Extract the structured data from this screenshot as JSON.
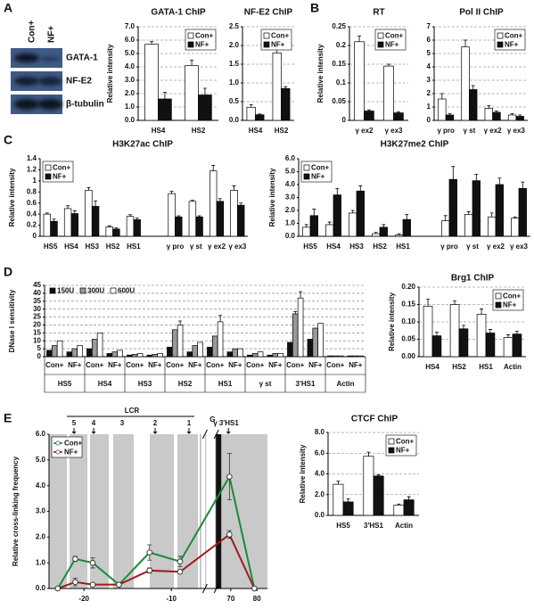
{
  "panels": [
    "A",
    "B",
    "C",
    "D",
    "E"
  ],
  "blot": {
    "lanes": [
      "Con+",
      "NF+"
    ],
    "proteins": [
      "GATA-1",
      "NF-E2",
      "β-tubulin"
    ]
  },
  "chart_data": [
    {
      "type": "bar",
      "title": "GATA-1 ChIP",
      "y_label": "Relative intensity",
      "categories": [
        "HS4",
        "HS2"
      ],
      "series": [
        {
          "name": "Con+",
          "color": "#ffffff",
          "values": [
            5.7,
            4.1
          ],
          "errors": [
            0.2,
            0.4
          ]
        },
        {
          "name": "NF+",
          "color": "#111111",
          "values": [
            1.6,
            1.9
          ],
          "errors": [
            0.5,
            0.5
          ]
        }
      ],
      "ylim": [
        0,
        7
      ],
      "yticks": [
        {
          "value": 0,
          "label": "0.0"
        },
        {
          "value": 1,
          "label": "1.0"
        },
        {
          "value": 2,
          "label": "2.0"
        },
        {
          "value": 3,
          "label": "3.0"
        },
        {
          "value": 4,
          "label": "4.0"
        },
        {
          "value": 5,
          "label": "5.0"
        },
        {
          "value": 6,
          "label": "6.0"
        },
        {
          "value": 7,
          "label": "7.0"
        }
      ],
      "grid": true,
      "legend": "upper right"
    },
    {
      "type": "bar",
      "title": "NF-E2 ChIP",
      "categories": [
        "HS4",
        "HS2"
      ],
      "series": [
        {
          "name": "Con+",
          "color": "#ffffff",
          "values": [
            0.35,
            1.8
          ],
          "errors": [
            0.07,
            0.1
          ]
        },
        {
          "name": "NF+",
          "color": "#111111",
          "values": [
            0.15,
            0.85
          ],
          "errors": [
            0.02,
            0.05
          ]
        }
      ],
      "ylim": [
        0,
        2.5
      ],
      "yticks": [
        {
          "value": 0,
          "label": "0.0"
        },
        0.5,
        {
          "value": 1,
          "label": "1.0"
        },
        1.5,
        {
          "value": 2,
          "label": "2.0"
        },
        2.5
      ],
      "grid": true,
      "legend": "upper right"
    },
    {
      "type": "bar",
      "title": "RT",
      "y_label": "Relative intensity",
      "categories": [
        "γ ex2",
        "γ ex3"
      ],
      "series": [
        {
          "name": "Con+",
          "color": "#ffffff",
          "values": [
            0.21,
            0.145
          ],
          "errors": [
            0.015,
            0.005
          ]
        },
        {
          "name": "NF+",
          "color": "#111111",
          "values": [
            0.025,
            0.02
          ],
          "errors": [
            0.003,
            0.003
          ]
        }
      ],
      "ylim": [
        0,
        0.25
      ],
      "yticks": [
        0,
        0.05,
        0.1,
        0.15,
        0.2,
        0.25
      ],
      "grid": true,
      "legend": "upper right"
    },
    {
      "type": "bar",
      "title": "Pol II ChIP",
      "categories": [
        "γ pro",
        "γ st",
        "γ ex2",
        "γ ex3"
      ],
      "series": [
        {
          "name": "Con+",
          "color": "#ffffff",
          "values": [
            1.6,
            5.5,
            0.9,
            0.4
          ],
          "errors": [
            0.4,
            0.5,
            0.2,
            0.1
          ]
        },
        {
          "name": "NF+",
          "color": "#111111",
          "values": [
            0.4,
            2.3,
            0.6,
            0.3
          ],
          "errors": [
            0.1,
            0.3,
            0.1,
            0.1
          ]
        }
      ],
      "ylim": [
        0,
        7
      ],
      "yticks": [
        0,
        1,
        2,
        3,
        4,
        5,
        6,
        7
      ],
      "grid": true,
      "legend": "upper right"
    },
    {
      "type": "bar",
      "title": "H3K27ac ChIP",
      "y_label": "Relative intensity",
      "categories": [
        "HS5",
        "HS4",
        "HS3",
        "HS2",
        "HS1",
        null,
        "γ pro",
        "γ st",
        "γ ex2",
        "γ ex3"
      ],
      "series": [
        {
          "name": "Con+",
          "color": "#ffffff",
          "values": [
            0.4,
            0.5,
            0.83,
            0.17,
            0.36,
            null,
            0.77,
            0.63,
            1.18,
            0.83
          ],
          "errors": [
            0.02,
            0.05,
            0.05,
            0.02,
            0.03,
            null,
            0.04,
            0.02,
            0.1,
            0.08
          ]
        },
        {
          "name": "NF+",
          "color": "#111111",
          "values": [
            0.27,
            0.41,
            0.54,
            0.13,
            0.3,
            null,
            0.35,
            0.35,
            0.63,
            0.56
          ],
          "errors": [
            0.04,
            0.05,
            0.1,
            0.02,
            0.03,
            null,
            0.02,
            0.02,
            0.05,
            0.04
          ]
        }
      ],
      "ylim": [
        0,
        1.4
      ],
      "yticks": [
        0,
        0.2,
        0.4,
        0.6,
        0.8,
        1,
        1.2,
        1.4
      ],
      "grid": false,
      "legend": "upper left"
    },
    {
      "type": "bar",
      "title": "H3K27me2 ChIP",
      "y_label": "Relative intensity",
      "categories": [
        "HS5",
        "HS4",
        "HS3",
        "HS2",
        "HS1",
        null,
        "γ pro",
        "γ st",
        "γ ex2",
        "γ ex3"
      ],
      "series": [
        {
          "name": "Con+",
          "color": "#ffffff",
          "values": [
            0.7,
            0.9,
            1.8,
            0.2,
            0.1,
            null,
            1.2,
            1.7,
            1.5,
            1.4
          ],
          "errors": [
            0.2,
            0.2,
            0.2,
            0.1,
            0.1,
            null,
            0.4,
            0.2,
            0.3,
            0.1
          ]
        },
        {
          "name": "NF+",
          "color": "#111111",
          "values": [
            1.6,
            3.2,
            3.5,
            0.7,
            1.3,
            null,
            4.4,
            4.3,
            4.0,
            3.7
          ],
          "errors": [
            0.5,
            0.5,
            0.4,
            0.2,
            0.4,
            null,
            1.0,
            0.5,
            0.5,
            0.5
          ]
        }
      ],
      "ylim": [
        0,
        6
      ],
      "yticks": [
        {
          "value": 0,
          "label": "0.0"
        },
        {
          "value": 1,
          "label": "1.0"
        },
        {
          "value": 2,
          "label": "2.0"
        },
        {
          "value": 3,
          "label": "3.0"
        },
        {
          "value": 4,
          "label": "4.0"
        },
        {
          "value": 5,
          "label": "5.0"
        },
        {
          "value": 6,
          "label": "6.0"
        }
      ],
      "grid": false,
      "legend": "upper left"
    },
    {
      "type": "bar",
      "y_label": "DNase I sensitivity",
      "categories": [
        "Con+",
        "NF+",
        "Con+",
        "NF+",
        "Con+",
        "NF+",
        "Con+",
        "NF+",
        "Con+",
        "NF+",
        "Con+",
        "NF+",
        "Con+",
        "NF+",
        "Con+",
        "NF+"
      ],
      "groups": [
        "HS5",
        "HS4",
        "HS3",
        "HS2",
        "HS1",
        "γ st",
        "3'HS1",
        "Actin"
      ],
      "series": [
        {
          "name": "150U",
          "color": "#111111",
          "values": [
            4,
            3,
            5,
            2,
            1,
            1,
            6,
            3,
            6,
            3,
            1,
            1,
            9,
            11,
            0.5,
            0.5
          ]
        },
        {
          "name": "300U",
          "color": "#999999",
          "values": [
            7,
            5,
            11,
            3,
            1.5,
            1.5,
            17,
            7,
            13,
            5,
            2,
            2,
            27,
            18,
            0.5,
            0.5
          ],
          "errors": [
            null,
            null,
            null,
            null,
            null,
            null,
            null,
            null,
            null,
            null,
            null,
            null,
            1.5,
            null,
            null,
            null
          ]
        },
        {
          "name": "600U",
          "color": "#ffffff",
          "values": [
            10,
            7,
            15,
            4,
            2,
            2,
            20,
            9,
            22,
            5,
            3,
            2,
            37,
            21,
            0.5,
            0.5
          ],
          "errors": [
            null,
            null,
            null,
            null,
            null,
            null,
            2.5,
            null,
            4,
            null,
            null,
            null,
            4,
            null,
            null,
            null
          ]
        }
      ],
      "ylim": [
        0,
        45
      ],
      "yticks": [
        0,
        5,
        10,
        15,
        20,
        25,
        30,
        35,
        40,
        45
      ],
      "grid": true,
      "legend": "upper left"
    },
    {
      "type": "bar",
      "title": "Brg1 ChIP",
      "y_label": "Relative intensity",
      "categories": [
        "HS4",
        "HS2",
        "HS1",
        "Actin"
      ],
      "series": [
        {
          "name": "Con+",
          "color": "#ffffff",
          "values": [
            0.145,
            0.15,
            0.122,
            0.055
          ],
          "errors": [
            0.02,
            0.01,
            0.015,
            0.008
          ]
        },
        {
          "name": "NF+",
          "color": "#111111",
          "values": [
            0.06,
            0.08,
            0.068,
            0.065
          ],
          "errors": [
            0.01,
            0.01,
            0.01,
            0.008
          ]
        }
      ],
      "ylim": [
        0,
        0.2
      ],
      "yticks": [
        {
          "value": 0,
          "label": "0.00"
        },
        0.05,
        {
          "value": 0.1,
          "label": "0.10"
        },
        0.15,
        {
          "value": 0.2,
          "label": "0.20"
        }
      ],
      "grid": true,
      "legend": "upper right"
    },
    {
      "type": "line",
      "y_label": "Relative cross-linking frequency",
      "x": [
        -23,
        -21,
        -19,
        -16,
        -12.5,
        -9,
        69.5,
        79
      ],
      "series": [
        {
          "name": "Con+",
          "color": "#1a8a3a",
          "values": [
            0,
            1.15,
            1.0,
            0.15,
            1.4,
            1.05,
            4.35,
            0
          ],
          "errors": [
            null,
            0.1,
            0.2,
            null,
            0.3,
            0.2,
            0.9,
            null
          ]
        },
        {
          "name": "NF+",
          "color": "#a01c1c",
          "values": [
            0,
            0.25,
            0.15,
            0.15,
            0.7,
            0.65,
            2.1,
            0
          ],
          "errors": [
            null,
            0.15,
            null,
            null,
            0.1,
            null,
            0.15,
            null
          ]
        }
      ],
      "xlim": [
        -24,
        84
      ],
      "xbreak": [
        -6,
        64
      ],
      "xticks": [
        -20,
        -10,
        70,
        80
      ],
      "ylim": [
        0,
        6
      ],
      "yticks": [
        {
          "value": 0,
          "label": "0.0"
        },
        {
          "value": 1,
          "label": "1.0"
        },
        {
          "value": 2,
          "label": "2.0"
        },
        {
          "value": 3,
          "label": "3.0"
        },
        {
          "value": 4,
          "label": "4.0"
        },
        {
          "value": 5,
          "label": "5.0"
        },
        {
          "value": 6,
          "label": "6.0"
        }
      ],
      "annotations": {
        "region": "LCR",
        "hs": [
          "5",
          "4",
          "3",
          "2",
          "1"
        ],
        "gene_sup": "G",
        "gene": "γ 3'HS1"
      },
      "legend": "upper left"
    },
    {
      "type": "bar",
      "title": "CTCF ChIP",
      "y_label": "Relative intensity",
      "categories": [
        "HS5",
        "3'HS1",
        "Actin"
      ],
      "series": [
        {
          "name": "Con+",
          "color": "#ffffff",
          "values": [
            3.0,
            5.7,
            1.0
          ],
          "errors": [
            0.3,
            0.4,
            0.1
          ]
        },
        {
          "name": "NF+",
          "color": "#111111",
          "values": [
            1.3,
            3.8,
            1.5
          ],
          "errors": [
            0.3,
            0.1,
            0.3
          ]
        }
      ],
      "ylim": [
        0,
        8
      ],
      "yticks": [
        {
          "value": 0,
          "label": "0.0"
        },
        {
          "value": 2,
          "label": "2.0"
        },
        {
          "value": 4,
          "label": "4.0"
        },
        {
          "value": 6,
          "label": "6.0"
        },
        {
          "value": 8,
          "label": "8.0"
        }
      ],
      "grid": true,
      "legend": "upper right"
    }
  ]
}
